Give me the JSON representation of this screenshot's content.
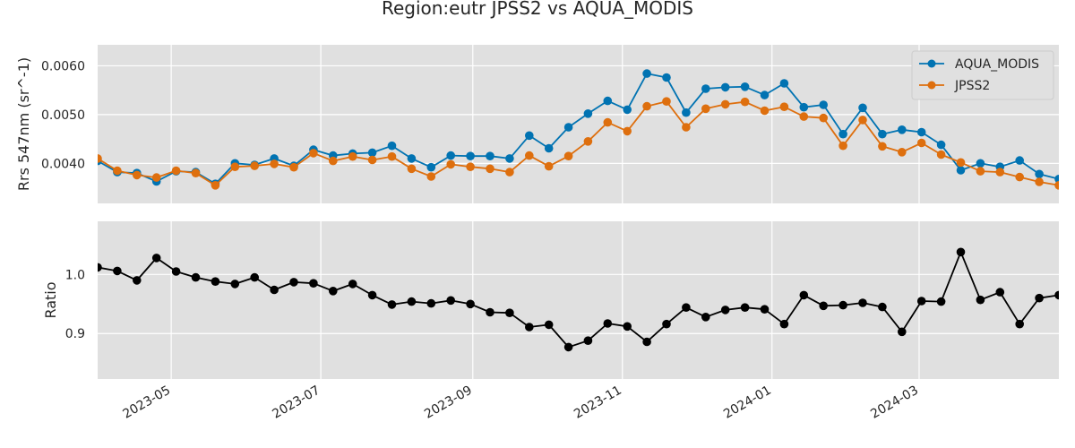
{
  "chart_data": {
    "title": "Region:eutr JPSS2 vs AQUA_MODIS",
    "x_dates": [
      "2023-04-01",
      "2023-04-09",
      "2023-04-17",
      "2023-04-25",
      "2023-05-03",
      "2023-05-11",
      "2023-05-19",
      "2023-05-27",
      "2023-06-04",
      "2023-06-12",
      "2023-06-20",
      "2023-06-28",
      "2023-07-06",
      "2023-07-14",
      "2023-07-22",
      "2023-07-30",
      "2023-08-07",
      "2023-08-15",
      "2023-08-23",
      "2023-08-31",
      "2023-09-08",
      "2023-09-16",
      "2023-09-24",
      "2023-10-02",
      "2023-10-10",
      "2023-10-18",
      "2023-10-26",
      "2023-11-03",
      "2023-11-11",
      "2023-11-19",
      "2023-11-27",
      "2023-12-05",
      "2023-12-13",
      "2023-12-21",
      "2023-12-29",
      "2024-01-06",
      "2024-01-14",
      "2024-01-22",
      "2024-01-30",
      "2024-02-07",
      "2024-02-15",
      "2024-02-23",
      "2024-03-02",
      "2024-03-10",
      "2024-03-18",
      "2024-03-26",
      "2024-04-03",
      "2024-04-11",
      "2024-04-19",
      "2024-04-27"
    ],
    "xlim": [
      "2023-04-01",
      "2024-04-27"
    ],
    "x_ticks": [
      "2023-05",
      "2023-07",
      "2023-09",
      "2023-11",
      "2024-01",
      "2024-03"
    ],
    "panels": [
      {
        "type": "line",
        "ylabel": "Rrs 547nm (sr^-1)",
        "ylim": [
          0.00318,
          0.00643
        ],
        "y_ticks": [
          0.004,
          0.005,
          0.006
        ],
        "y_tick_labels": [
          "0.0040",
          "0.0050",
          "0.0060"
        ],
        "legend_position": "top-right",
        "series": [
          {
            "name": "AQUA_MODIS",
            "color": "#0173b2",
            "values": [
              0.00405,
              0.00382,
              0.0038,
              0.00363,
              0.00384,
              0.00382,
              0.00358,
              0.004,
              0.00397,
              0.0041,
              0.00395,
              0.00428,
              0.00416,
              0.0042,
              0.00422,
              0.00436,
              0.0041,
              0.00392,
              0.00416,
              0.00415,
              0.00415,
              0.0041,
              0.00457,
              0.00431,
              0.00474,
              0.00502,
              0.00528,
              0.0051,
              0.00584,
              0.00576,
              0.00504,
              0.00553,
              0.00556,
              0.00557,
              0.0054,
              0.00564,
              0.00515,
              0.0052,
              0.0046,
              0.00514,
              0.0046,
              0.00469,
              0.00464,
              0.00438,
              0.00386,
              0.004,
              0.00393,
              0.00406,
              0.00378,
              0.00368
            ]
          },
          {
            "name": "JPSS2",
            "color": "#de6f0e",
            "values": [
              0.0041,
              0.00385,
              0.00376,
              0.00371,
              0.00385,
              0.0038,
              0.00355,
              0.00393,
              0.00395,
              0.00399,
              0.00392,
              0.00421,
              0.00405,
              0.00414,
              0.00407,
              0.00414,
              0.00389,
              0.00373,
              0.00398,
              0.00393,
              0.00389,
              0.00382,
              0.00416,
              0.00394,
              0.00415,
              0.00445,
              0.00484,
              0.00466,
              0.00517,
              0.00527,
              0.00474,
              0.00512,
              0.00521,
              0.00526,
              0.00508,
              0.00516,
              0.00496,
              0.00493,
              0.00436,
              0.00489,
              0.00435,
              0.00423,
              0.00442,
              0.00418,
              0.00402,
              0.00384,
              0.00382,
              0.00372,
              0.00362,
              0.00355
            ]
          }
        ]
      },
      {
        "type": "line",
        "ylabel": "Ratio",
        "ylim": [
          0.823,
          1.09
        ],
        "y_ticks": [
          0.9,
          1.0
        ],
        "y_tick_labels": [
          "0.9",
          "1.0"
        ],
        "series": [
          {
            "name": "",
            "color": "#000000",
            "values": [
              1.012,
              1.006,
              0.99,
              1.028,
              1.005,
              0.995,
              0.988,
              0.984,
              0.995,
              0.974,
              0.987,
              0.985,
              0.972,
              0.984,
              0.965,
              0.949,
              0.954,
              0.951,
              0.956,
              0.95,
              0.936,
              0.935,
              0.911,
              0.915,
              0.877,
              0.888,
              0.917,
              0.912,
              0.886,
              0.916,
              0.944,
              0.928,
              0.94,
              0.944,
              0.941,
              0.916,
              0.965,
              0.947,
              0.948,
              0.952,
              0.945,
              0.903,
              0.955,
              0.954,
              1.038,
              0.957,
              0.97,
              0.916,
              0.96,
              0.965
            ]
          }
        ]
      }
    ]
  }
}
